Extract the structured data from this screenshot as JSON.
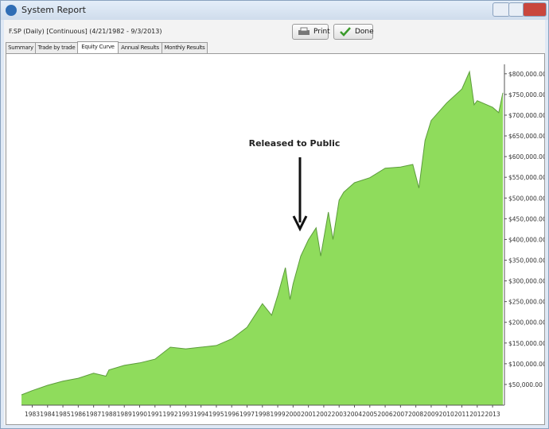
{
  "window": {
    "title": "System Report"
  },
  "header": {
    "info": "F.SP (Daily) [Continuous] (4/21/1982 - 9/3/2013)",
    "print_button": "Print",
    "done_button": "Done"
  },
  "tabs": [
    "Summary",
    "Trade by trade",
    "Equity Curve",
    "Annual Results",
    "Monthly Results"
  ],
  "chart_data": {
    "type": "area",
    "annotation": "Released to Public",
    "color": "#8fdc5c",
    "x": [
      1982.3,
      1983,
      1984,
      1985,
      1986,
      1987,
      1987.8,
      1988,
      1989,
      1990,
      1991,
      1992,
      1993,
      1994,
      1995,
      1996,
      1997,
      1998,
      1998.6,
      1999,
      1999.5,
      1999.8,
      2000,
      2000.5,
      2001,
      2001.5,
      2001.8,
      2002.3,
      2002.6,
      2003,
      2003.3,
      2004,
      2005,
      2006,
      2007,
      2007.8,
      2008.2,
      2008.6,
      2009,
      2010,
      2011,
      2011.5,
      2011.8,
      2012,
      2013,
      2013.4,
      2013.67
    ],
    "values": [
      25000,
      35000,
      48000,
      58000,
      65000,
      77000,
      70000,
      85000,
      96000,
      102000,
      111000,
      140000,
      136000,
      140000,
      144000,
      160000,
      188000,
      245000,
      217000,
      265000,
      332000,
      255000,
      293000,
      360000,
      399000,
      428000,
      360000,
      466000,
      400000,
      495000,
      514000,
      537000,
      549000,
      572000,
      575000,
      581000,
      524000,
      639000,
      687000,
      729000,
      763000,
      805000,
      725000,
      735000,
      719000,
      706000,
      754000
    ],
    "xlim": [
      1982.3,
      2013.67
    ],
    "xticks": [
      1983,
      1984,
      1985,
      1986,
      1987,
      1988,
      1989,
      1990,
      1991,
      1992,
      1993,
      1994,
      1995,
      1996,
      1997,
      1998,
      1999,
      2000,
      2001,
      2002,
      2003,
      2004,
      2005,
      2006,
      2007,
      2008,
      2009,
      2010,
      2011,
      2012,
      2013
    ],
    "ylim": [
      0,
      815000
    ],
    "yticks": [
      {
        "value": 50000,
        "label": "$50,000.00"
      },
      {
        "value": 100000,
        "label": "$100,000.00"
      },
      {
        "value": 150000,
        "label": "$150,000.00"
      },
      {
        "value": 200000,
        "label": "$200,000.00"
      },
      {
        "value": 250000,
        "label": "$250,000.00"
      },
      {
        "value": 300000,
        "label": "$300,000.00"
      },
      {
        "value": 350000,
        "label": "$350,000.00"
      },
      {
        "value": 400000,
        "label": "$400,000.00"
      },
      {
        "value": 450000,
        "label": "$450,000.00"
      },
      {
        "value": 500000,
        "label": "$500,000.00"
      },
      {
        "value": 550000,
        "label": "$550,000.00"
      },
      {
        "value": 600000,
        "label": "$600,000.00"
      },
      {
        "value": 650000,
        "label": "$650,000.00"
      },
      {
        "value": 700000,
        "label": "$700,000.00"
      },
      {
        "value": 750000,
        "label": "$750,000.00"
      },
      {
        "value": 800000,
        "label": "$800,000.00"
      }
    ]
  }
}
